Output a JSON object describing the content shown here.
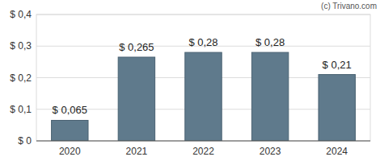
{
  "chart_data": {
    "type": "bar",
    "annotations": [
      "(c) Trivano.com"
    ],
    "categories": [
      "2020",
      "2021",
      "2022",
      "2023",
      "2024"
    ],
    "values": [
      0.065,
      0.265,
      0.28,
      0.28,
      0.21
    ],
    "value_labels": [
      "$ 0,065",
      "$ 0,265",
      "$ 0,28",
      "$ 0,28",
      "$ 0,21"
    ],
    "data_labels": true,
    "color": "#5f7a8c",
    "ylim": [
      0,
      0.4
    ],
    "yticks": [
      {
        "value": 0,
        "label": "$ 0"
      },
      {
        "value": 0.1,
        "label": "$ 0,1"
      },
      {
        "value": 0.2,
        "label": "$ 0,2"
      },
      {
        "value": 0.3,
        "label": "$ 0,3"
      },
      {
        "value": 0.4,
        "label": "$ 0,4"
      }
    ],
    "grid": true
  }
}
